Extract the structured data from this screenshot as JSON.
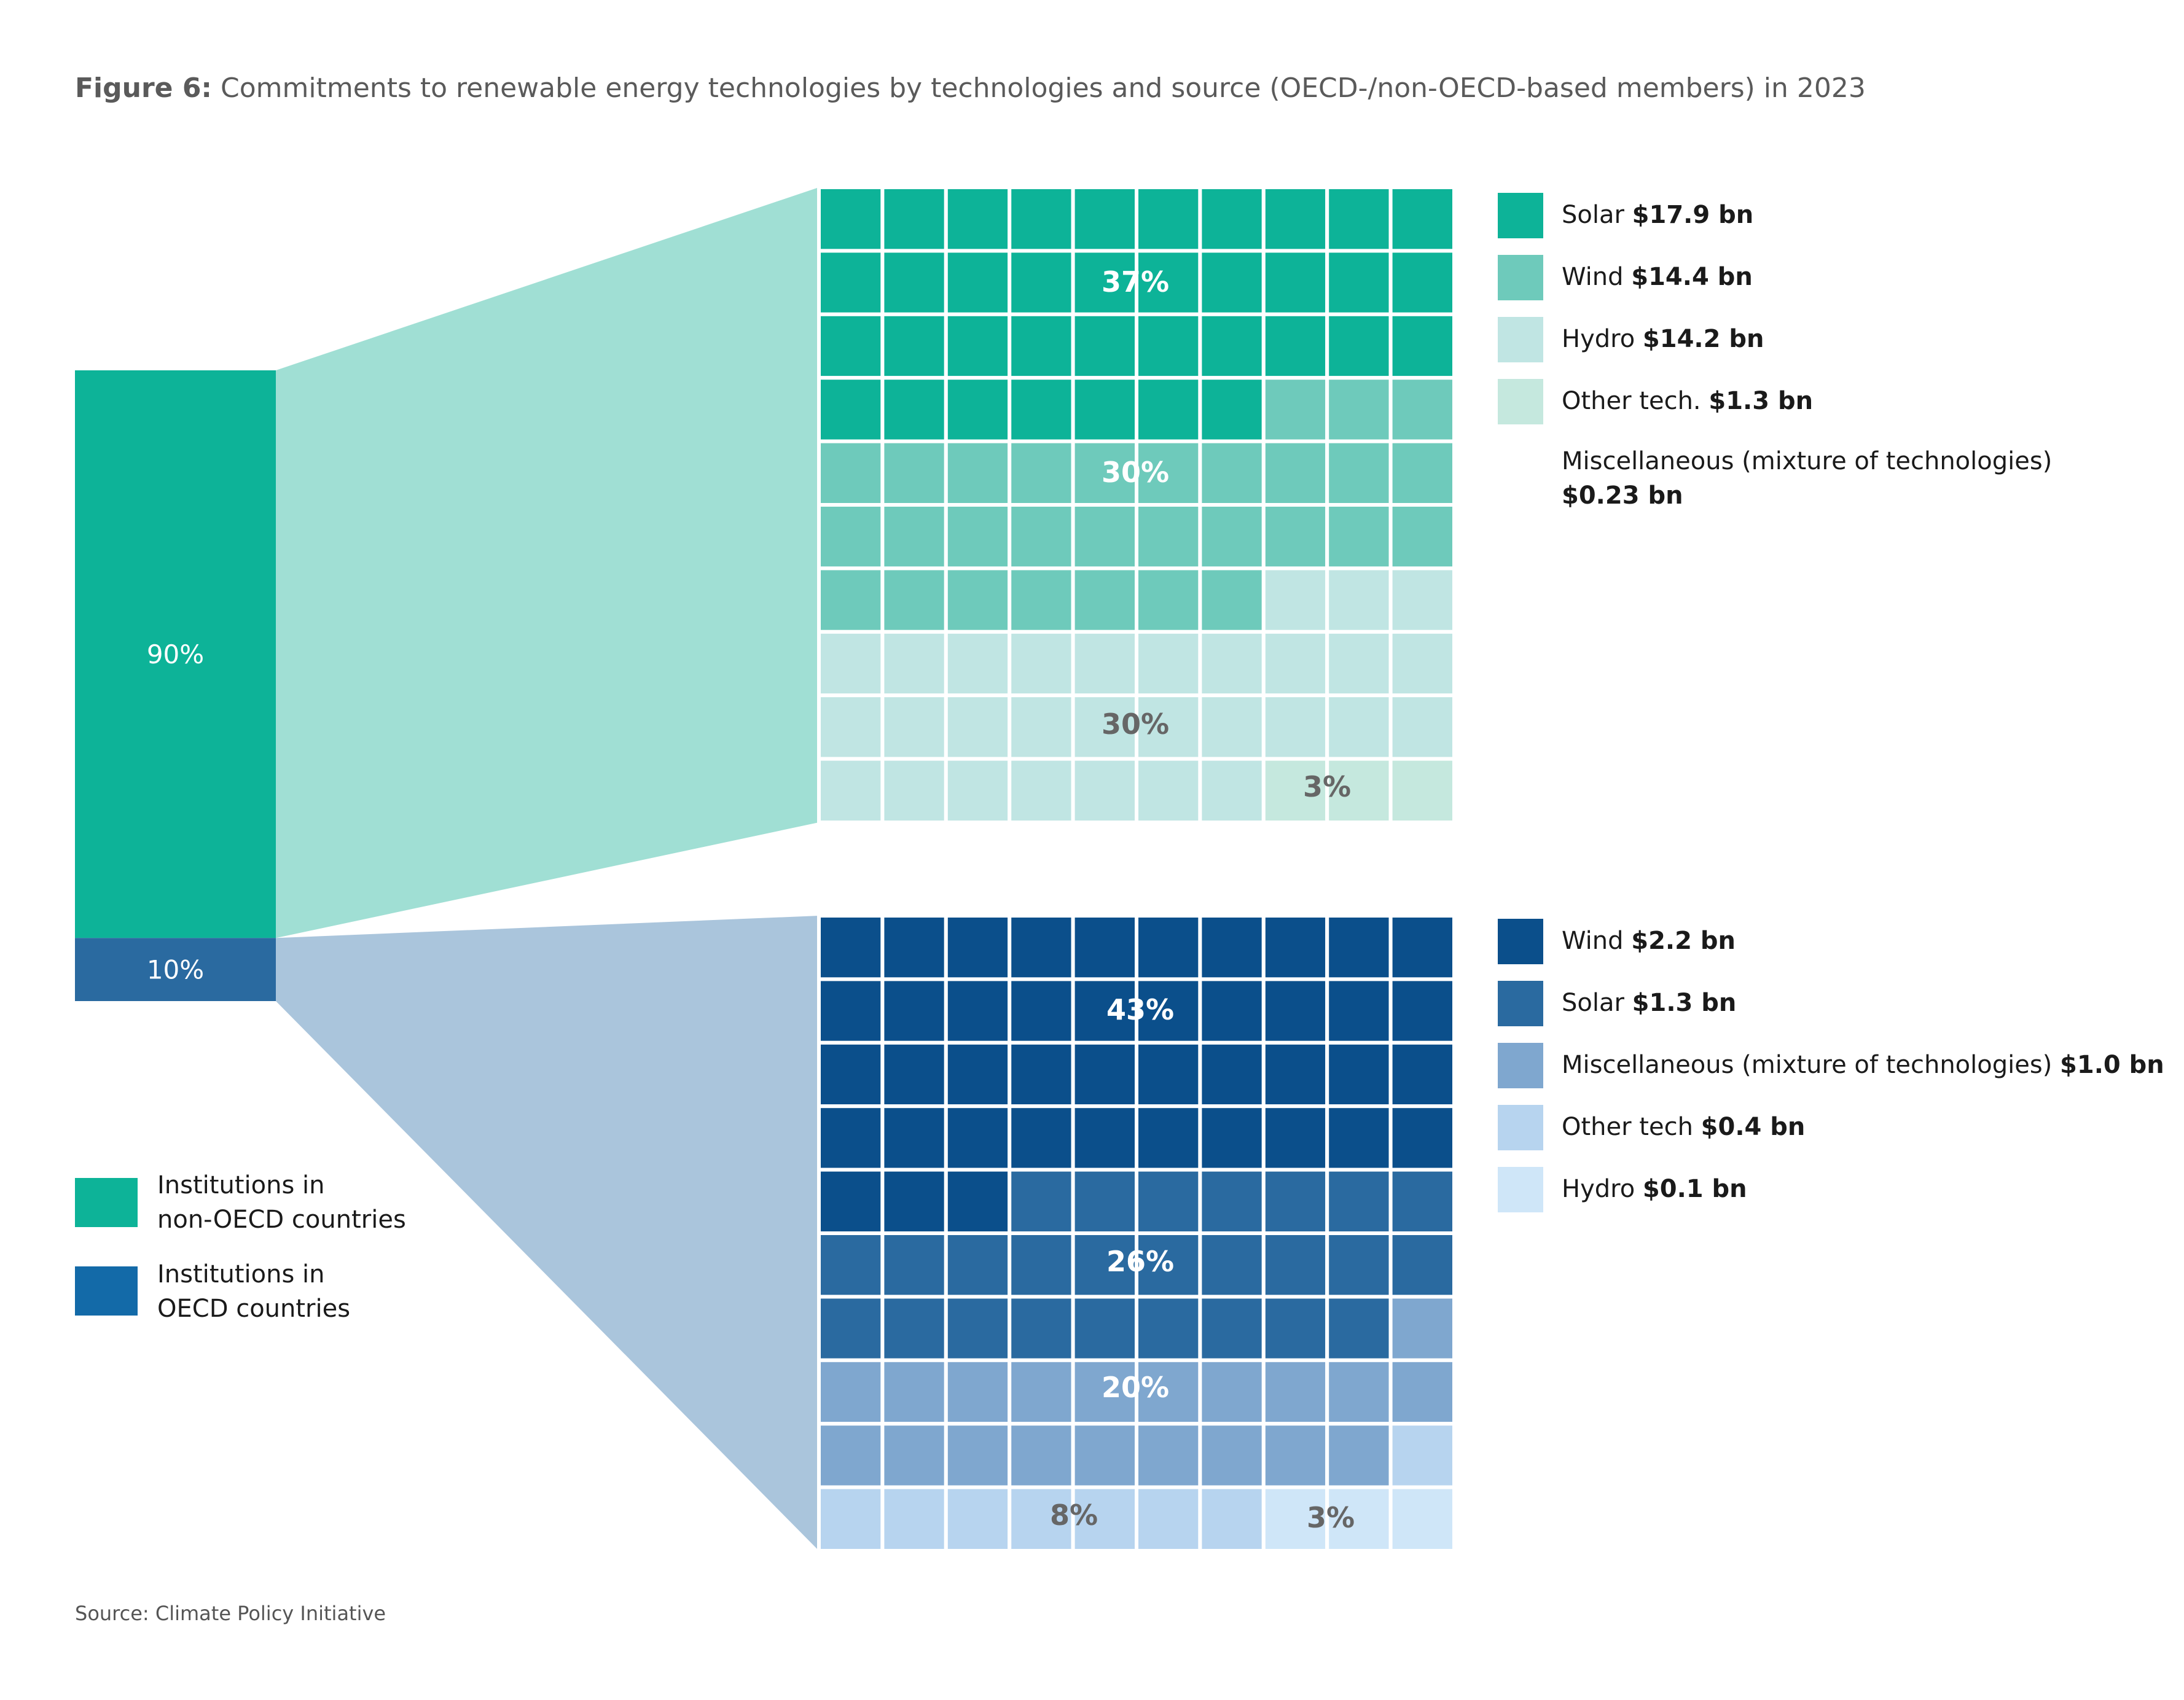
{
  "title": {
    "prefix": "Figure 6:",
    "text": "Commitments to renewable energy technologies by technologies and source (OECD-/non-OECD-based members) in 2023"
  },
  "source": "Source: Climate Policy Initiative",
  "chart_data": {
    "type": "waffle",
    "title": "Commitments to renewable energy technologies by technologies and source (OECD-/non-OECD-based members) in 2023",
    "split": [
      {
        "name": "Institutions in non-OECD countries",
        "share_label": "90%",
        "value": 90,
        "color": "#0db398"
      },
      {
        "name": "Institutions in OECD countries",
        "share_label": "10%",
        "value": 10,
        "color": "#2a6aa0"
      }
    ],
    "waffles": [
      {
        "group": "non-OECD",
        "categories": [
          {
            "name": "Solar",
            "amount": "$17.9 bn",
            "cells": 37,
            "pct_label": "37%",
            "color": "#0db398"
          },
          {
            "name": "Wind",
            "amount": "$14.4 bn",
            "cells": 30,
            "pct_label": "30%",
            "color": "#6ecabb"
          },
          {
            "name": "Hydro",
            "amount": "$14.2 bn",
            "cells": 30,
            "pct_label": "30%",
            "color": "#c0e5e3"
          },
          {
            "name": "Other tech.",
            "amount": "$1.3 bn",
            "cells": 3,
            "pct_label": "3%",
            "color": "#c5e8de"
          },
          {
            "name": "Miscellaneous (mixture of technologies)",
            "amount": "$0.23 bn",
            "cells": 0,
            "pct_label": "",
            "color": "#ffffff"
          }
        ]
      },
      {
        "group": "OECD",
        "categories": [
          {
            "name": "Wind",
            "amount": "$2.2 bn",
            "cells": 43,
            "pct_label": "43%",
            "color": "#0b4f8b"
          },
          {
            "name": "Solar",
            "amount": "$1.3 bn",
            "cells": 26,
            "pct_label": "26%",
            "color": "#2a6aa0"
          },
          {
            "name": "Miscellaneous (mixture of technologies)",
            "amount": "$1.0 bn",
            "cells": 20,
            "pct_label": "20%",
            "color": "#7fa7cf"
          },
          {
            "name": "Other tech",
            "amount": "$0.4 bn",
            "cells": 8,
            "pct_label": "8%",
            "color": "#b7d4ef"
          },
          {
            "name": "Hydro",
            "amount": "$0.1 bn",
            "cells": 3,
            "pct_label": "3%",
            "color": "#cfe6f8"
          }
        ]
      }
    ],
    "legend": [
      {
        "name": "Institutions in non-OECD countries",
        "line1": "Institutions in",
        "line2": "non-OECD countries",
        "color": "#0db398"
      },
      {
        "name": "Institutions in OECD countries",
        "line1": "Institutions in",
        "line2": "OECD countries",
        "color": "#136aa8"
      }
    ]
  }
}
